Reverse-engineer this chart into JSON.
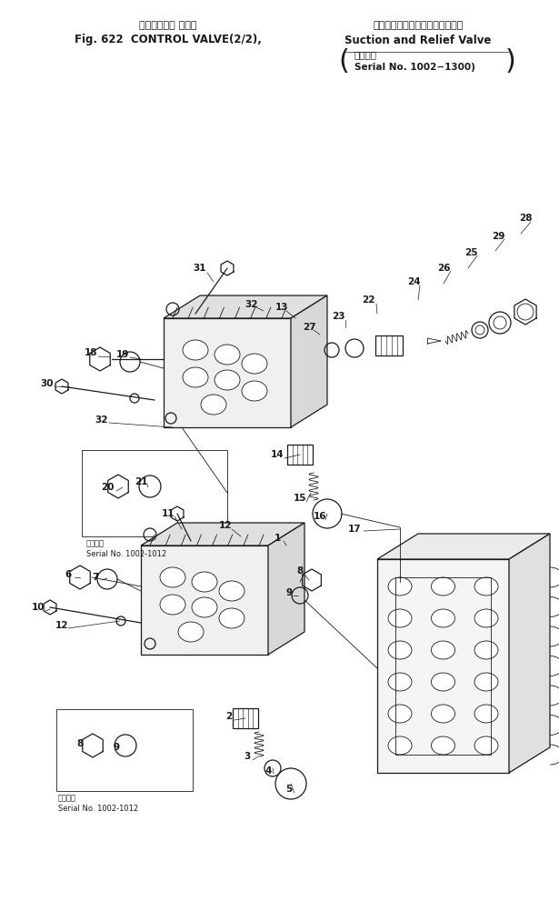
{
  "fig_width": 6.15,
  "fig_height": 9.91,
  "dpi": 100,
  "bg": "#ffffff",
  "lc": "#1a1a1a",
  "title": {
    "t1_jp": "コントロール バルブ",
    "t1_en": "Fig. 622  CONTROL VALVE(2/2),",
    "t2_jp": "サクションおよびリリーフバルブ",
    "t2_en": "Suction and Relief Valve",
    "t3_jp": "適用号機",
    "t3_en": "Serial No. 1002−1300"
  }
}
